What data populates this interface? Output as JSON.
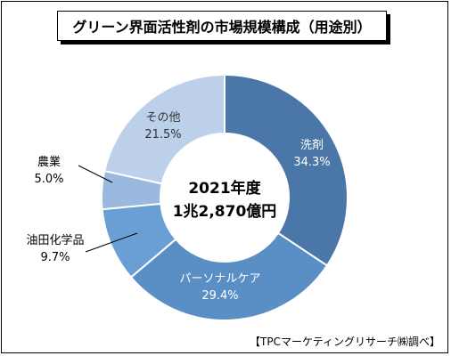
{
  "chart_data": {
    "type": "donut",
    "title": "グリーン界面活性剤の市場規模構成（用途別）",
    "center_label": [
      "2021年度",
      "1兆2,870億円"
    ],
    "categories": [
      "洗剤",
      "パーソナルケア",
      "油田化学品",
      "農業",
      "その他"
    ],
    "values": [
      34.3,
      29.4,
      9.7,
      5.0,
      21.5
    ],
    "value_labels": [
      "34.3%",
      "29.4%",
      "9.7%",
      "5.0%",
      "21.5%"
    ],
    "colors": [
      "#4a77a8",
      "#5a8fc6",
      "#6a9fd6",
      "#99b9de",
      "#bcd0ea"
    ],
    "start_angle_deg": 0,
    "direction": "clockwise",
    "source": "【TPCマーケティングリサーチ㈱調べ】"
  }
}
